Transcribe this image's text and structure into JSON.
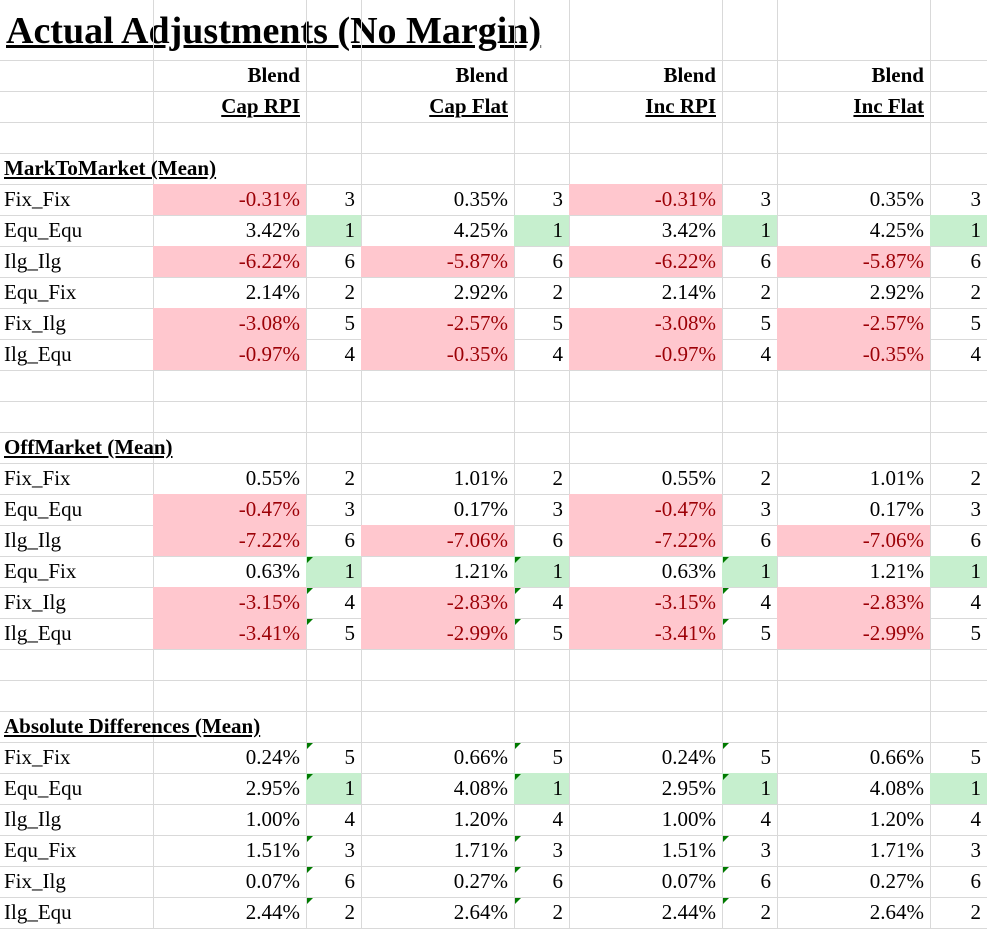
{
  "title": "Actual Adjustments (No Margin)",
  "columns": [
    {
      "line1": "Blend",
      "line2": "Cap RPI"
    },
    {
      "line1": "Blend",
      "line2": "Cap Flat"
    },
    {
      "line1": "Blend",
      "line2": "Inc RPI"
    },
    {
      "line1": "Blend",
      "line2": "Inc Flat"
    }
  ],
  "colors": {
    "negative_fill": "#ffc7ce",
    "negative_text": "#9c0006",
    "rank_best_fill": "#c6efce",
    "error_flag": "#007a00"
  },
  "sections": [
    {
      "heading": "MarkToMarket (Mean)",
      "rows": [
        {
          "label": "Fix_Fix",
          "cells": [
            [
              "-0.31%",
              "3"
            ],
            [
              "0.35%",
              "3"
            ],
            [
              "-0.31%",
              "3"
            ],
            [
              "0.35%",
              "3"
            ]
          ]
        },
        {
          "label": "Equ_Equ",
          "cells": [
            [
              "3.42%",
              "1"
            ],
            [
              "4.25%",
              "1"
            ],
            [
              "3.42%",
              "1"
            ],
            [
              "4.25%",
              "1"
            ]
          ]
        },
        {
          "label": "Ilg_Ilg",
          "cells": [
            [
              "-6.22%",
              "6"
            ],
            [
              "-5.87%",
              "6"
            ],
            [
              "-6.22%",
              "6"
            ],
            [
              "-5.87%",
              "6"
            ]
          ]
        },
        {
          "label": "Equ_Fix",
          "cells": [
            [
              "2.14%",
              "2"
            ],
            [
              "2.92%",
              "2"
            ],
            [
              "2.14%",
              "2"
            ],
            [
              "2.92%",
              "2"
            ]
          ]
        },
        {
          "label": "Fix_Ilg",
          "cells": [
            [
              "-3.08%",
              "5"
            ],
            [
              "-2.57%",
              "5"
            ],
            [
              "-3.08%",
              "5"
            ],
            [
              "-2.57%",
              "5"
            ]
          ]
        },
        {
          "label": "Ilg_Equ",
          "cells": [
            [
              "-0.97%",
              "4"
            ],
            [
              "-0.35%",
              "4"
            ],
            [
              "-0.97%",
              "4"
            ],
            [
              "-0.35%",
              "4"
            ]
          ]
        }
      ]
    },
    {
      "heading": "OffMarket (Mean)",
      "rows": [
        {
          "label": "Fix_Fix",
          "cells": [
            [
              "0.55%",
              "2"
            ],
            [
              "1.01%",
              "2"
            ],
            [
              "0.55%",
              "2"
            ],
            [
              "1.01%",
              "2"
            ]
          ]
        },
        {
          "label": "Equ_Equ",
          "cells": [
            [
              "-0.47%",
              "3"
            ],
            [
              "0.17%",
              "3"
            ],
            [
              "-0.47%",
              "3"
            ],
            [
              "0.17%",
              "3"
            ]
          ]
        },
        {
          "label": "Ilg_Ilg",
          "cells": [
            [
              "-7.22%",
              "6"
            ],
            [
              "-7.06%",
              "6"
            ],
            [
              "-7.22%",
              "6"
            ],
            [
              "-7.06%",
              "6"
            ]
          ]
        },
        {
          "label": "Equ_Fix",
          "cells": [
            [
              "0.63%",
              "1"
            ],
            [
              "1.21%",
              "1"
            ],
            [
              "0.63%",
              "1"
            ],
            [
              "1.21%",
              "1"
            ]
          ]
        },
        {
          "label": "Fix_Ilg",
          "cells": [
            [
              "-3.15%",
              "4"
            ],
            [
              "-2.83%",
              "4"
            ],
            [
              "-3.15%",
              "4"
            ],
            [
              "-2.83%",
              "4"
            ]
          ]
        },
        {
          "label": "Ilg_Equ",
          "cells": [
            [
              "-3.41%",
              "5"
            ],
            [
              "-2.99%",
              "5"
            ],
            [
              "-3.41%",
              "5"
            ],
            [
              "-2.99%",
              "5"
            ]
          ]
        }
      ]
    },
    {
      "heading": "Absolute Differences (Mean)",
      "rows": [
        {
          "label": "Fix_Fix",
          "cells": [
            [
              "0.24%",
              "5"
            ],
            [
              "0.66%",
              "5"
            ],
            [
              "0.24%",
              "5"
            ],
            [
              "0.66%",
              "5"
            ]
          ]
        },
        {
          "label": "Equ_Equ",
          "cells": [
            [
              "2.95%",
              "1"
            ],
            [
              "4.08%",
              "1"
            ],
            [
              "2.95%",
              "1"
            ],
            [
              "4.08%",
              "1"
            ]
          ]
        },
        {
          "label": "Ilg_Ilg",
          "cells": [
            [
              "1.00%",
              "4"
            ],
            [
              "1.20%",
              "4"
            ],
            [
              "1.00%",
              "4"
            ],
            [
              "1.20%",
              "4"
            ]
          ]
        },
        {
          "label": "Equ_Fix",
          "cells": [
            [
              "1.51%",
              "3"
            ],
            [
              "1.71%",
              "3"
            ],
            [
              "1.51%",
              "3"
            ],
            [
              "1.71%",
              "3"
            ]
          ]
        },
        {
          "label": "Fix_Ilg",
          "cells": [
            [
              "0.07%",
              "6"
            ],
            [
              "0.27%",
              "6"
            ],
            [
              "0.07%",
              "6"
            ],
            [
              "0.27%",
              "6"
            ]
          ]
        },
        {
          "label": "Ilg_Equ",
          "cells": [
            [
              "2.44%",
              "2"
            ],
            [
              "2.64%",
              "2"
            ],
            [
              "2.44%",
              "2"
            ],
            [
              "2.64%",
              "2"
            ]
          ]
        }
      ]
    }
  ]
}
